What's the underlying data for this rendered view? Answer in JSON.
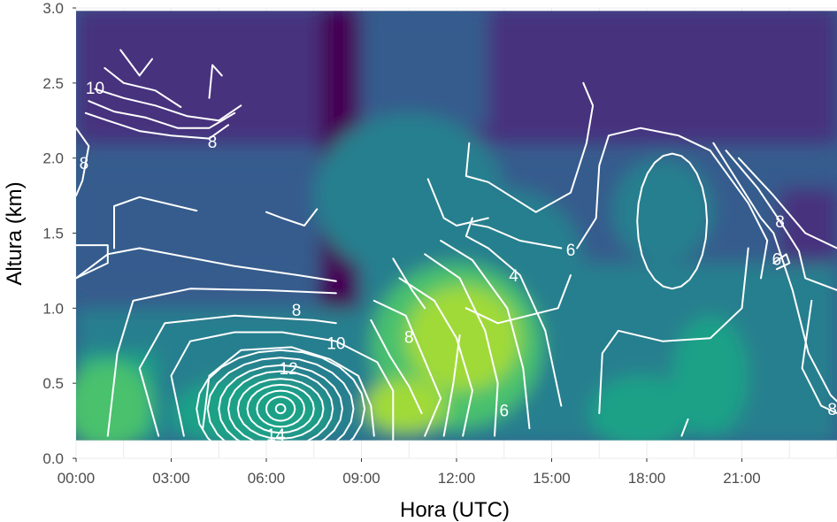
{
  "chart_data": {
    "type": "heatmap",
    "title": "",
    "xlabel": "Hora (UTC)",
    "ylabel": "Altura (km)",
    "x_ticks": [
      "00:00",
      "03:00",
      "06:00",
      "09:00",
      "12:00",
      "15:00",
      "18:00",
      "21:00"
    ],
    "x_tick_hours": [
      0,
      3,
      6,
      9,
      12,
      15,
      18,
      21
    ],
    "y_ticks": [
      "0.0",
      "0.5",
      "1.0",
      "1.5",
      "2.0",
      "2.5",
      "3.0"
    ],
    "y_tick_values": [
      0,
      0.5,
      1.0,
      1.5,
      2.0,
      2.5,
      3.0
    ],
    "xlim_hours": [
      0,
      24
    ],
    "ylim": [
      0,
      3.0
    ],
    "data_extent": {
      "x": [
        0,
        24
      ],
      "y": [
        0.12,
        2.98
      ]
    },
    "colormap": [
      "#440154",
      "#46327e",
      "#365c8d",
      "#277f8e",
      "#1fa187",
      "#4ac16d",
      "#a0da39",
      "#fde725"
    ],
    "contour_color": "#ffffff",
    "contour_labels": [
      {
        "text": "10",
        "hour": 0.6,
        "km": 2.47
      },
      {
        "text": "8",
        "hour": 4.3,
        "km": 2.11
      },
      {
        "text": "8",
        "hour": 0.25,
        "km": 1.97
      },
      {
        "text": "8",
        "hour": 6.95,
        "km": 0.99
      },
      {
        "text": "10",
        "hour": 8.2,
        "km": 0.77
      },
      {
        "text": "12",
        "hour": 6.7,
        "km": 0.6
      },
      {
        "text": "14",
        "hour": 6.3,
        "km": 0.16
      },
      {
        "text": "8",
        "hour": 10.5,
        "km": 0.81
      },
      {
        "text": "4",
        "hour": 13.8,
        "km": 1.22
      },
      {
        "text": "6",
        "hour": 15.6,
        "km": 1.39
      },
      {
        "text": "6",
        "hour": 13.5,
        "km": 0.32
      },
      {
        "text": "8",
        "hour": 22.2,
        "km": 1.58
      },
      {
        "text": "6",
        "hour": 22.1,
        "km": 1.33
      },
      {
        "text": "8",
        "hour": 23.85,
        "km": 0.33
      }
    ]
  }
}
